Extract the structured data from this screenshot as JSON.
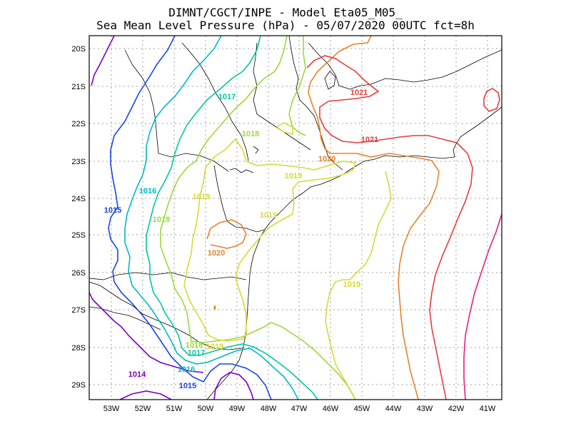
{
  "header": {
    "line1": "DIMNT/CGCT/INPE -  Model Eta05_M05_",
    "line2": "Sea Mean Level Pressure (hPa) - 05/07/2020 00UTC fct=8h"
  },
  "axes": {
    "lat_labels": [
      "20S",
      "21S",
      "22S",
      "23S",
      "24S",
      "25S",
      "26S",
      "27S",
      "28S",
      "29S"
    ],
    "lon_labels": [
      "53W",
      "52W",
      "51W",
      "50W",
      "49W",
      "48W",
      "47W",
      "46W",
      "45W",
      "44W",
      "43W",
      "42W",
      "41W"
    ]
  },
  "contour_labels": [
    {
      "text": "1014",
      "color": "#7a00c8"
    },
    {
      "text": "1015",
      "color": "#1a44e6"
    },
    {
      "text": "1015",
      "color": "#1a44e6"
    },
    {
      "text": "1016",
      "color": "#00b8c8"
    },
    {
      "text": "1016",
      "color": "#00b8c8"
    },
    {
      "text": "1017",
      "color": "#00c8a0"
    },
    {
      "text": "1017",
      "color": "#00c8a0"
    },
    {
      "text": "1018",
      "color": "#9ad83c"
    },
    {
      "text": "1018",
      "color": "#9ad83c"
    },
    {
      "text": "1018",
      "color": "#9ad83c"
    },
    {
      "text": "1019",
      "color": "#d8d838"
    },
    {
      "text": "1019",
      "color": "#d8d838"
    },
    {
      "text": "1019",
      "color": "#d8d838"
    },
    {
      "text": "1019",
      "color": "#d8d838"
    },
    {
      "text": "1019",
      "color": "#d8d838"
    },
    {
      "text": "1020",
      "color": "#e8822a"
    },
    {
      "text": "1020",
      "color": "#e8822a"
    },
    {
      "text": "1021",
      "color": "#e83c3c"
    },
    {
      "text": "1021",
      "color": "#e83c3c"
    }
  ],
  "colors": {
    "c1014": "#7a00c8",
    "c1015": "#1a44e6",
    "c1016": "#00b8c8",
    "c1017": "#00c8a0",
    "c1018": "#9ad83c",
    "c1019": "#d8d838",
    "c1020": "#e8822a",
    "c1021": "#e83c3c",
    "c1022": "#e0208c",
    "grid": "#a0a0a0",
    "coast": "#000000"
  }
}
